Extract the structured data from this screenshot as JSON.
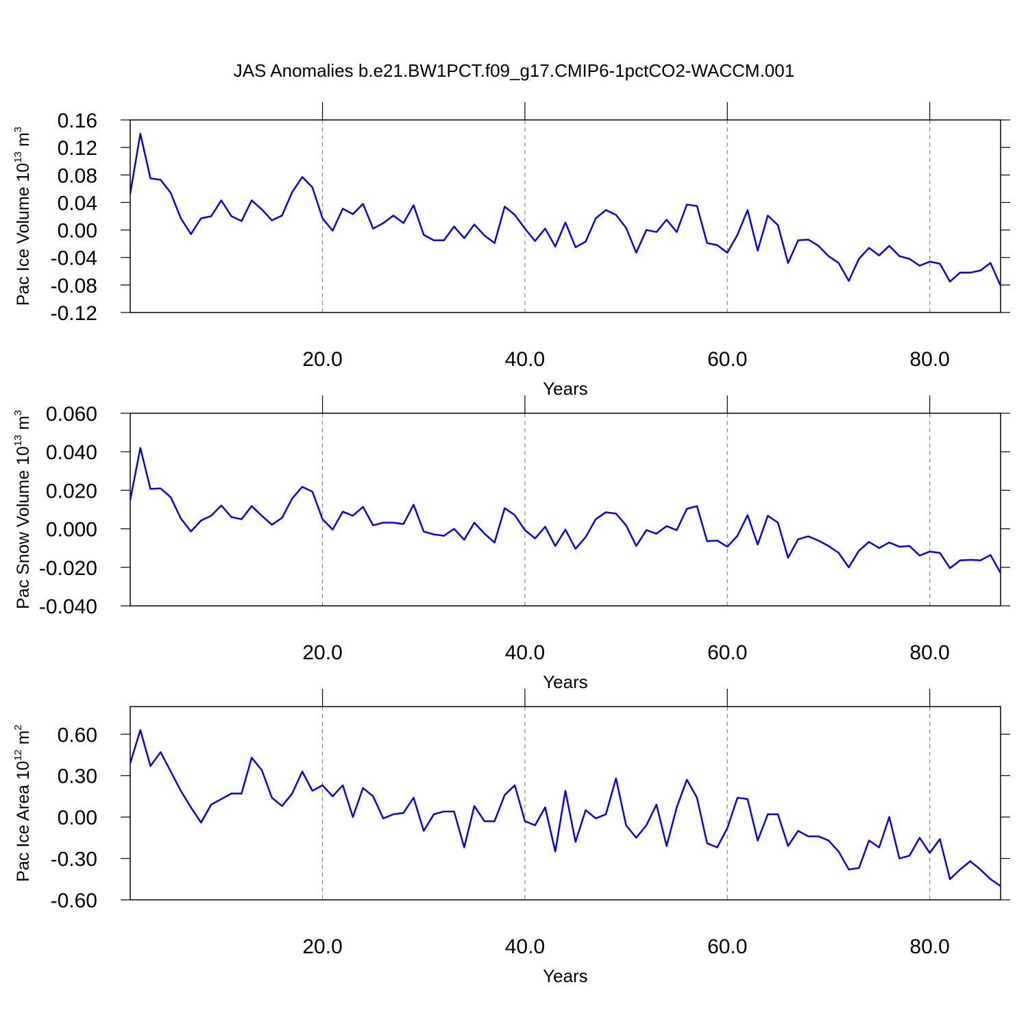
{
  "chart_data": [
    {
      "type": "line",
      "title": "JAS Anomalies b.e21.BW1PCT.f09_g17.CMIP6-1pctCO2-WACCM.001",
      "ylabel": "Pac Ice Volume 10",
      "ylabel_exp": "13",
      "ylabel_unit": "m",
      "ylabel_unit_exp": "3",
      "xlabel": "Years",
      "grid": true,
      "color": "#0000ff",
      "xlim": [
        1,
        87
      ],
      "xticks": [
        {
          "value": 20,
          "label": "20.0"
        },
        {
          "value": 40,
          "label": "40.0"
        },
        {
          "value": 60,
          "label": "60.0"
        },
        {
          "value": 80,
          "label": "80.0"
        }
      ],
      "ylim": [
        -0.12,
        0.16
      ],
      "yticks": [
        {
          "value": -0.12,
          "label": "-0.12"
        },
        {
          "value": -0.08,
          "label": "-0.08"
        },
        {
          "value": -0.04,
          "label": "-0.04"
        },
        {
          "value": 0,
          "label": "0.00"
        },
        {
          "value": 0.04,
          "label": "0.04"
        },
        {
          "value": 0.08,
          "label": "0.08"
        },
        {
          "value": 0.12,
          "label": "0.12"
        },
        {
          "value": 0.16,
          "label": "0.16"
        }
      ],
      "x": [
        1,
        2,
        3,
        4,
        5,
        6,
        7,
        8,
        9,
        10,
        11,
        12,
        13,
        14,
        15,
        16,
        17,
        18,
        19,
        20,
        21,
        22,
        23,
        24,
        25,
        26,
        27,
        28,
        29,
        30,
        31,
        32,
        33,
        34,
        35,
        36,
        37,
        38,
        39,
        40,
        41,
        42,
        43,
        44,
        45,
        46,
        47,
        48,
        49,
        50,
        51,
        52,
        53,
        54,
        55,
        56,
        57,
        58,
        59,
        60,
        61,
        62,
        63,
        64,
        65,
        66,
        67,
        68,
        69,
        70,
        71,
        72,
        73,
        74,
        75,
        76,
        77,
        78,
        79,
        80,
        81,
        82,
        83,
        84,
        85,
        86,
        87
      ],
      "values": [
        0.053,
        0.14,
        0.075,
        0.073,
        0.054,
        0.017,
        -0.006,
        0.017,
        0.02,
        0.043,
        0.02,
        0.013,
        0.043,
        0.03,
        0.014,
        0.021,
        0.055,
        0.077,
        0.062,
        0.017,
        -0.001,
        0.031,
        0.023,
        0.038,
        0.002,
        0.01,
        0.021,
        0.01,
        0.036,
        -0.007,
        -0.015,
        -0.015,
        0.005,
        -0.012,
        0.008,
        -0.008,
        -0.019,
        0.034,
        0.022,
        0.002,
        -0.016,
        0.002,
        -0.024,
        0.011,
        -0.025,
        -0.017,
        0.017,
        0.029,
        0.022,
        0.003,
        -0.033,
        0.0,
        -0.003,
        0.015,
        -0.003,
        0.037,
        0.035,
        -0.019,
        -0.022,
        -0.033,
        -0.007,
        0.029,
        -0.03,
        0.021,
        0.007,
        -0.048,
        -0.015,
        -0.014,
        -0.023,
        -0.038,
        -0.048,
        -0.074,
        -0.042,
        -0.026,
        -0.037,
        -0.023,
        -0.038,
        -0.042,
        -0.052,
        -0.046,
        -0.049,
        -0.075,
        -0.062,
        -0.062,
        -0.059,
        -0.048,
        -0.081
      ]
    },
    {
      "type": "line",
      "ylabel": "Pac Snow Volume 10",
      "ylabel_exp": "13",
      "ylabel_unit": "m",
      "ylabel_unit_exp": "3",
      "xlabel": "Years",
      "grid": true,
      "color": "#0000ff",
      "xlim": [
        1,
        87
      ],
      "xticks": [
        {
          "value": 20,
          "label": "20.0"
        },
        {
          "value": 40,
          "label": "40.0"
        },
        {
          "value": 60,
          "label": "60.0"
        },
        {
          "value": 80,
          "label": "80.0"
        }
      ],
      "ylim": [
        -0.04,
        0.06
      ],
      "yticks": [
        {
          "value": -0.04,
          "label": "-0.040"
        },
        {
          "value": -0.02,
          "label": "-0.020"
        },
        {
          "value": 0,
          "label": "0.000"
        },
        {
          "value": 0.02,
          "label": "0.020"
        },
        {
          "value": 0.04,
          "label": "0.040"
        },
        {
          "value": 0.06,
          "label": "0.060"
        }
      ],
      "x": [
        1,
        2,
        3,
        4,
        5,
        6,
        7,
        8,
        9,
        10,
        11,
        12,
        13,
        14,
        15,
        16,
        17,
        18,
        19,
        20,
        21,
        22,
        23,
        24,
        25,
        26,
        27,
        28,
        29,
        30,
        31,
        32,
        33,
        34,
        35,
        36,
        37,
        38,
        39,
        40,
        41,
        42,
        43,
        44,
        45,
        46,
        47,
        48,
        49,
        50,
        51,
        52,
        53,
        54,
        55,
        56,
        57,
        58,
        59,
        60,
        61,
        62,
        63,
        64,
        65,
        66,
        67,
        68,
        69,
        70,
        71,
        72,
        73,
        74,
        75,
        76,
        77,
        78,
        79,
        80,
        81,
        82,
        83,
        84,
        85,
        86,
        87
      ],
      "values": [
        0.015,
        0.042,
        0.0207,
        0.021,
        0.0164,
        0.0054,
        -0.0014,
        0.0043,
        0.0068,
        0.0121,
        0.0061,
        0.005,
        0.0118,
        0.0068,
        0.0021,
        0.0057,
        0.0157,
        0.0218,
        0.0193,
        0.005,
        -0.0004,
        0.0089,
        0.0068,
        0.0114,
        0.0018,
        0.0032,
        0.0032,
        0.0025,
        0.0125,
        -0.0014,
        -0.0029,
        -0.0036,
        0,
        -0.0057,
        0.0032,
        -0.0025,
        -0.0071,
        0.0107,
        0.0071,
        -0.0007,
        -0.005,
        0.0011,
        -0.0089,
        -0.0004,
        -0.0104,
        -0.0043,
        0.005,
        0.0086,
        0.0079,
        0.0018,
        -0.0089,
        -0.0007,
        -0.0025,
        0.0014,
        -0.0007,
        0.0104,
        0.0118,
        -0.0064,
        -0.0061,
        -0.0093,
        -0.0036,
        0.0071,
        -0.0082,
        0.0068,
        0.0032,
        -0.015,
        -0.0054,
        -0.0039,
        -0.0061,
        -0.0089,
        -0.0125,
        -0.02,
        -0.0114,
        -0.0068,
        -0.01,
        -0.0071,
        -0.0093,
        -0.0089,
        -0.0139,
        -0.0118,
        -0.0125,
        -0.0204,
        -0.0164,
        -0.0161,
        -0.0164,
        -0.0136,
        -0.0229
      ]
    },
    {
      "type": "line",
      "ylabel": "Pac Ice Area 10",
      "ylabel_exp": "12",
      "ylabel_unit": "m",
      "ylabel_unit_exp": "2",
      "xlabel": "Years",
      "grid": true,
      "color": "#0000ff",
      "xlim": [
        1,
        87
      ],
      "xticks": [
        {
          "value": 20,
          "label": "20.0"
        },
        {
          "value": 40,
          "label": "40.0"
        },
        {
          "value": 60,
          "label": "60.0"
        },
        {
          "value": 80,
          "label": "80.0"
        }
      ],
      "ylim": [
        -0.6,
        0.8
      ],
      "yticks": [
        {
          "value": -0.6,
          "label": "-0.60"
        },
        {
          "value": -0.3,
          "label": "-0.30"
        },
        {
          "value": 0,
          "label": "0.00"
        },
        {
          "value": 0.3,
          "label": "0.30"
        },
        {
          "value": 0.6,
          "label": "0.60"
        }
      ],
      "x": [
        1,
        2,
        3,
        4,
        5,
        6,
        7,
        8,
        9,
        10,
        11,
        12,
        13,
        14,
        15,
        16,
        17,
        18,
        19,
        20,
        21,
        22,
        23,
        24,
        25,
        26,
        27,
        28,
        29,
        30,
        31,
        32,
        33,
        34,
        35,
        36,
        37,
        38,
        39,
        40,
        41,
        42,
        43,
        44,
        45,
        46,
        47,
        48,
        49,
        50,
        51,
        52,
        53,
        54,
        55,
        56,
        57,
        58,
        59,
        60,
        61,
        62,
        63,
        64,
        65,
        66,
        67,
        68,
        69,
        70,
        71,
        72,
        73,
        74,
        75,
        76,
        77,
        78,
        79,
        80,
        81,
        82,
        83,
        84,
        85,
        86,
        87
      ],
      "values": [
        0.39,
        0.63,
        0.37,
        0.47,
        0.33,
        0.19,
        0.07,
        -0.04,
        0.09,
        0.13,
        0.17,
        0.17,
        0.43,
        0.34,
        0.14,
        0.08,
        0.17,
        0.33,
        0.19,
        0.23,
        0.15,
        0.23,
        0.0,
        0.21,
        0.15,
        -0.01,
        0.02,
        0.03,
        0.14,
        -0.1,
        0.02,
        0.04,
        0.04,
        -0.22,
        0.08,
        -0.03,
        -0.03,
        0.16,
        0.23,
        -0.03,
        -0.06,
        0.07,
        -0.25,
        0.19,
        -0.18,
        0.05,
        -0.01,
        0.02,
        0.28,
        -0.06,
        -0.15,
        -0.06,
        0.09,
        -0.21,
        0.07,
        0.27,
        0.14,
        -0.19,
        -0.22,
        -0.08,
        0.14,
        0.13,
        -0.17,
        0.02,
        0.02,
        -0.21,
        -0.1,
        -0.14,
        -0.14,
        -0.17,
        -0.25,
        -0.38,
        -0.37,
        -0.17,
        -0.22,
        0.0,
        -0.3,
        -0.28,
        -0.15,
        -0.26,
        -0.16,
        -0.45,
        -0.38,
        -0.32,
        -0.38,
        -0.45,
        -0.5
      ]
    }
  ]
}
